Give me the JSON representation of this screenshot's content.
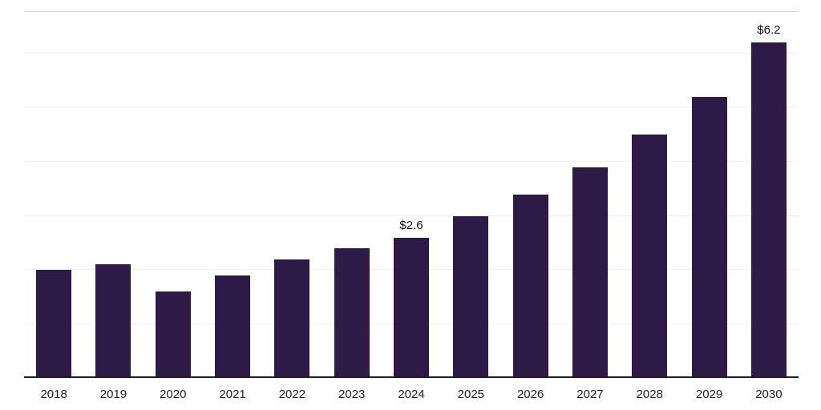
{
  "chart_data": {
    "type": "bar",
    "title": "",
    "xlabel": "",
    "ylabel": "",
    "categories": [
      "2018",
      "2019",
      "2020",
      "2021",
      "2022",
      "2023",
      "2024",
      "2025",
      "2026",
      "2027",
      "2028",
      "2029",
      "2030"
    ],
    "values": [
      2.0,
      2.1,
      1.6,
      1.9,
      2.2,
      2.4,
      2.6,
      3.0,
      3.4,
      3.9,
      4.5,
      5.2,
      6.2
    ],
    "value_labels": [
      "",
      "",
      "",
      "",
      "",
      "",
      "$2.6",
      "",
      "",
      "",
      "",
      "",
      "$6.2"
    ],
    "ylim": [
      0,
      6.77
    ],
    "gridline_values": [
      1,
      2,
      3,
      4,
      5,
      6
    ],
    "grid": true,
    "legend_position": "none",
    "bar_color": "#2e1a47",
    "axis_line_color": "#1f1f1f",
    "gridline_color": "#f0f0f0",
    "label_color": "#111111"
  }
}
